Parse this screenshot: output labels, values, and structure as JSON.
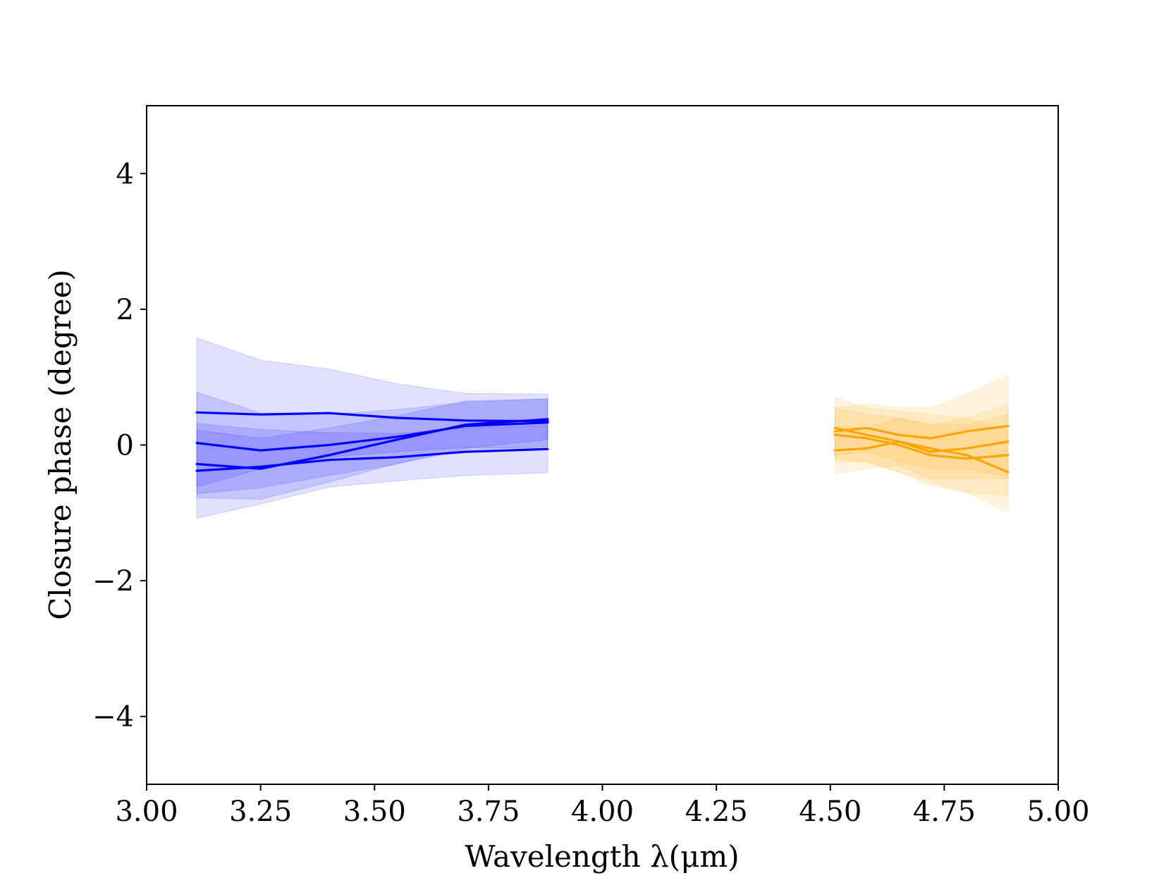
{
  "chart_data": {
    "type": "line",
    "title": "",
    "xlabel": "Wavelength λ(μm)",
    "ylabel": "Closure phase (degree)",
    "xlim": [
      3.0,
      5.0
    ],
    "ylim": [
      -5.0,
      5.0
    ],
    "xticks": [
      3.0,
      3.25,
      3.5,
      3.75,
      4.0,
      4.25,
      4.5,
      4.75,
      5.0
    ],
    "xtick_labels": [
      "3.00",
      "3.25",
      "3.50",
      "3.75",
      "4.00",
      "4.25",
      "4.50",
      "4.75",
      "5.00"
    ],
    "yticks": [
      -4,
      -2,
      0,
      2,
      4
    ],
    "ytick_labels": [
      "−4",
      "−2",
      "0",
      "2",
      "4"
    ],
    "grid": false,
    "legend": "none",
    "colors": {
      "L band": "#0000ff",
      "M band": "#ffa500"
    },
    "series": [
      {
        "band": "L",
        "color": "#0000ff",
        "x": [
          3.11,
          3.25,
          3.4,
          3.55,
          3.7,
          3.88
        ],
        "y": [
          0.48,
          0.45,
          0.47,
          0.4,
          0.36,
          0.35
        ],
        "err": [
          1.1,
          0.8,
          0.65,
          0.5,
          0.4,
          0.4
        ]
      },
      {
        "band": "L",
        "color": "#0000ff",
        "x": [
          3.11,
          3.25,
          3.4,
          3.55,
          3.7,
          3.88
        ],
        "y": [
          0.03,
          -0.08,
          0.0,
          0.12,
          0.28,
          0.33
        ],
        "err": [
          0.75,
          0.55,
          0.45,
          0.4,
          0.35,
          0.35
        ]
      },
      {
        "band": "L",
        "color": "#0000ff",
        "x": [
          3.11,
          3.25,
          3.4,
          3.55,
          3.7,
          3.88
        ],
        "y": [
          -0.28,
          -0.35,
          -0.15,
          0.08,
          0.3,
          0.38
        ],
        "err": [
          0.5,
          0.45,
          0.4,
          0.35,
          0.35,
          0.3
        ]
      },
      {
        "band": "L",
        "color": "#0000ff",
        "x": [
          3.11,
          3.25,
          3.4,
          3.55,
          3.7,
          3.88
        ],
        "y": [
          -0.38,
          -0.32,
          -0.22,
          -0.18,
          -0.1,
          -0.06
        ],
        "err": [
          0.7,
          0.55,
          0.4,
          0.35,
          0.35,
          0.35
        ]
      },
      {
        "band": "M",
        "color": "#ffa500",
        "x": [
          4.51,
          4.58,
          4.65,
          4.72,
          4.8,
          4.89
        ],
        "y": [
          0.25,
          0.15,
          0.05,
          -0.05,
          -0.15,
          -0.4
        ],
        "err": [
          0.45,
          0.4,
          0.45,
          0.5,
          0.55,
          0.6
        ]
      },
      {
        "band": "M",
        "color": "#ffa500",
        "x": [
          4.51,
          4.58,
          4.65,
          4.72,
          4.8,
          4.89
        ],
        "y": [
          0.2,
          0.25,
          0.15,
          0.1,
          0.2,
          0.28
        ],
        "err": [
          0.35,
          0.35,
          0.4,
          0.45,
          0.55,
          0.75
        ]
      },
      {
        "band": "M",
        "color": "#ffa500",
        "x": [
          4.51,
          4.58,
          4.65,
          4.72,
          4.8,
          4.89
        ],
        "y": [
          -0.08,
          -0.05,
          0.05,
          -0.1,
          -0.05,
          0.05
        ],
        "err": [
          0.35,
          0.3,
          0.35,
          0.4,
          0.45,
          0.55
        ]
      },
      {
        "band": "M",
        "color": "#ffa500",
        "x": [
          4.51,
          4.58,
          4.65,
          4.72,
          4.8,
          4.89
        ],
        "y": [
          0.15,
          0.1,
          0.0,
          -0.15,
          -0.2,
          -0.15
        ],
        "err": [
          0.4,
          0.35,
          0.4,
          0.45,
          0.5,
          0.6
        ]
      }
    ]
  }
}
